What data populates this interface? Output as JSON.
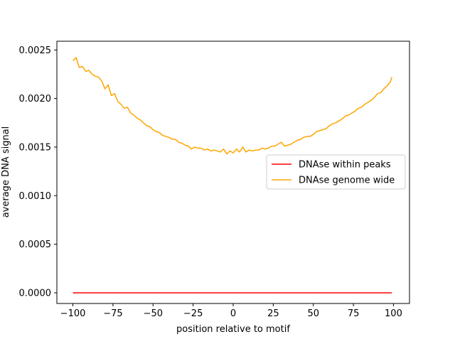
{
  "chart_data": {
    "type": "line",
    "title": "",
    "xlabel": "position relative to motif",
    "ylabel": "average DNA signal",
    "xlim": [
      -110,
      110
    ],
    "ylim": [
      -0.00011,
      0.00259
    ],
    "xticks": [
      -100,
      -75,
      -50,
      -25,
      0,
      25,
      50,
      75,
      100
    ],
    "xtick_labels": [
      "−100",
      "−75",
      "−50",
      "−25",
      "0",
      "25",
      "50",
      "75",
      "100"
    ],
    "yticks": [
      0.0,
      0.0005,
      0.001,
      0.0015,
      0.002,
      0.0025
    ],
    "ytick_labels": [
      "0.0000",
      "0.0005",
      "0.0010",
      "0.0015",
      "0.0020",
      "0.0025"
    ],
    "grid": false,
    "legend_position": "center-right",
    "series": [
      {
        "name": "DNAse within peaks",
        "color": "#ff0000",
        "x": [
          -100,
          99
        ],
        "y": [
          0.0,
          0.0
        ]
      },
      {
        "name": "DNAse genome wide",
        "color": "#ffa500",
        "x": [
          -100,
          -98,
          -96,
          -94,
          -92,
          -90,
          -88,
          -86,
          -84,
          -82,
          -80,
          -78,
          -76,
          -74,
          -72,
          -70,
          -68,
          -66,
          -64,
          -62,
          -60,
          -58,
          -56,
          -54,
          -52,
          -50,
          -48,
          -46,
          -44,
          -42,
          -40,
          -38,
          -36,
          -34,
          -32,
          -30,
          -28,
          -26,
          -24,
          -22,
          -20,
          -18,
          -16,
          -14,
          -12,
          -10,
          -8,
          -6,
          -4,
          -2,
          0,
          2,
          4,
          6,
          8,
          10,
          12,
          14,
          16,
          18,
          20,
          22,
          24,
          26,
          28,
          30,
          32,
          34,
          36,
          38,
          40,
          42,
          44,
          46,
          48,
          50,
          52,
          54,
          56,
          58,
          60,
          62,
          64,
          66,
          68,
          70,
          72,
          74,
          76,
          78,
          80,
          82,
          84,
          86,
          88,
          90,
          92,
          94,
          96,
          98,
          99
        ],
        "y": [
          0.00239,
          0.00242,
          0.00232,
          0.00233,
          0.00228,
          0.00229,
          0.00225,
          0.00223,
          0.00222,
          0.00218,
          0.0021,
          0.00214,
          0.00203,
          0.00205,
          0.00197,
          0.00194,
          0.0019,
          0.00191,
          0.00185,
          0.00183,
          0.0018,
          0.00178,
          0.00175,
          0.00172,
          0.00171,
          0.00168,
          0.00166,
          0.00165,
          0.00162,
          0.00161,
          0.0016,
          0.00158,
          0.00158,
          0.00155,
          0.00154,
          0.00152,
          0.00151,
          0.00148,
          0.0015,
          0.00149,
          0.00149,
          0.00147,
          0.00148,
          0.00146,
          0.00147,
          0.00146,
          0.00145,
          0.00148,
          0.00143,
          0.00146,
          0.00144,
          0.00148,
          0.00145,
          0.0015,
          0.00145,
          0.00147,
          0.00146,
          0.00147,
          0.00147,
          0.00149,
          0.00148,
          0.00149,
          0.00151,
          0.00151,
          0.00153,
          0.00155,
          0.00151,
          0.00152,
          0.00153,
          0.00155,
          0.00157,
          0.00158,
          0.0016,
          0.00161,
          0.00161,
          0.00163,
          0.00166,
          0.00167,
          0.00168,
          0.00169,
          0.00172,
          0.00174,
          0.00175,
          0.00177,
          0.00179,
          0.00182,
          0.00183,
          0.00185,
          0.00187,
          0.0019,
          0.00191,
          0.00194,
          0.00196,
          0.00198,
          0.00201,
          0.00205,
          0.00206,
          0.0021,
          0.00213,
          0.00217,
          0.00222
        ]
      }
    ]
  }
}
